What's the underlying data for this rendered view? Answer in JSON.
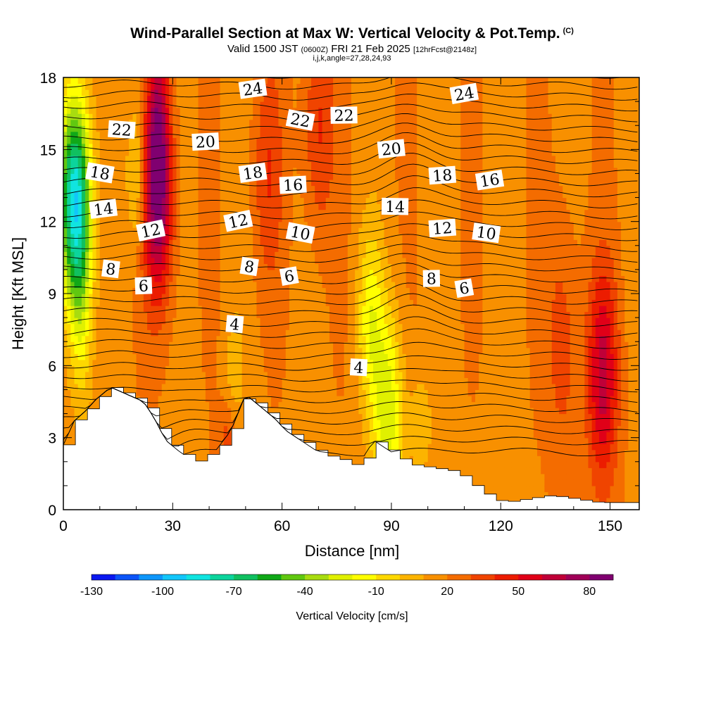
{
  "header": {
    "title": "Wind-Parallel Section at Max W: Vertical Velocity & Pot.Temp.",
    "title_tag": "(C)",
    "valid_prefix": "Valid 1500 JST",
    "valid_zulu": "(0600Z)",
    "valid_date": "FRI 21 Feb 2025",
    "forecast_info": "[12hrFcst@2148z]",
    "grid_info": "i,j,k,angle=27,28,24,93"
  },
  "chart_data": {
    "type": "heatmap",
    "title": "Wind-Parallel Section at Max W: Vertical Velocity & Pot.Temp.",
    "xlabel": "Distance [nm]",
    "ylabel": "Height [Kft MSL]",
    "xlim": [
      0,
      158
    ],
    "ylim": [
      0,
      18
    ],
    "x_ticks": [
      "0",
      "30",
      "60",
      "90",
      "120",
      "150"
    ],
    "y_ticks": [
      "0",
      "3",
      "6",
      "9",
      "12",
      "15",
      "18"
    ],
    "colorbar": {
      "label": "Vertical Velocity [cm/s]",
      "tick_labels": [
        "-130",
        "-100",
        "-70",
        "-40",
        "-10",
        "20",
        "50",
        "80"
      ],
      "colors": [
        "#0a18f0",
        "#0c54f8",
        "#0e96fa",
        "#12c6fa",
        "#10e4e0",
        "#0cd49c",
        "#10c060",
        "#10a818",
        "#60c810",
        "#a8dc10",
        "#e0f000",
        "#ffff00",
        "#fed800",
        "#fcb400",
        "#f89000",
        "#f46c00",
        "#f04400",
        "#ec1c00",
        "#e00018",
        "#c00038",
        "#a00058",
        "#800070"
      ]
    },
    "velocity_features": [
      {
        "x": 3,
        "z": 13,
        "w": -100
      },
      {
        "x": 26,
        "z": 13,
        "w": 55
      },
      {
        "x": 89,
        "z": 4,
        "w": -45
      },
      {
        "x": 148,
        "z": 5.5,
        "w": 45
      },
      {
        "x": 70,
        "z": 16,
        "w": 25
      },
      {
        "x": 56,
        "z": 14,
        "w": 20
      }
    ],
    "terrain": [
      [
        0,
        2.7
      ],
      [
        3,
        3.7
      ],
      [
        6,
        4.1
      ],
      [
        9,
        4.6
      ],
      [
        13,
        5.1
      ],
      [
        22,
        4.5
      ],
      [
        25,
        3.8
      ],
      [
        28,
        2.9
      ],
      [
        32,
        2.4
      ],
      [
        36,
        2.0
      ],
      [
        42,
        2.5
      ],
      [
        46,
        3.3
      ],
      [
        50,
        4.8
      ],
      [
        58,
        3.8
      ],
      [
        61,
        3.3
      ],
      [
        67,
        2.7
      ],
      [
        71,
        2.3
      ],
      [
        78,
        2.0
      ],
      [
        81,
        1.7
      ],
      [
        85,
        2.9
      ],
      [
        91,
        2.3
      ],
      [
        94,
        1.9
      ],
      [
        107,
        1.6
      ],
      [
        110,
        1.3
      ],
      [
        113,
        0.9
      ],
      [
        117,
        0.5
      ],
      [
        120,
        0.3
      ],
      [
        133,
        0.6
      ],
      [
        146,
        0.3
      ],
      [
        151,
        0.3
      ],
      [
        158,
        0.3
      ]
    ],
    "theta_labels": [
      {
        "text": "24",
        "x": 52,
        "z": 17.5
      },
      {
        "text": "24",
        "x": 110,
        "z": 17.3
      },
      {
        "text": "22",
        "x": 16,
        "z": 15.8
      },
      {
        "text": "22",
        "x": 65,
        "z": 16.2
      },
      {
        "text": "22",
        "x": 77,
        "z": 16.4
      },
      {
        "text": "20",
        "x": 39,
        "z": 15.3
      },
      {
        "text": "20",
        "x": 90,
        "z": 15.0
      },
      {
        "text": "18",
        "x": 10,
        "z": 14.0
      },
      {
        "text": "18",
        "x": 52,
        "z": 14.0
      },
      {
        "text": "18",
        "x": 104,
        "z": 13.9
      },
      {
        "text": "16",
        "x": 63,
        "z": 13.5
      },
      {
        "text": "16",
        "x": 117,
        "z": 13.7
      },
      {
        "text": "14",
        "x": 11,
        "z": 12.5
      },
      {
        "text": "14",
        "x": 91,
        "z": 12.6
      },
      {
        "text": "12",
        "x": 24,
        "z": 11.6
      },
      {
        "text": "12",
        "x": 48,
        "z": 12.0
      },
      {
        "text": "12",
        "x": 104,
        "z": 11.7
      },
      {
        "text": "10",
        "x": 65,
        "z": 11.5
      },
      {
        "text": "10",
        "x": 116,
        "z": 11.5
      },
      {
        "text": "8",
        "x": 13,
        "z": 10.0
      },
      {
        "text": "8",
        "x": 51,
        "z": 10.1
      },
      {
        "text": "8",
        "x": 101,
        "z": 9.6
      },
      {
        "text": "6",
        "x": 22,
        "z": 9.3
      },
      {
        "text": "6",
        "x": 62,
        "z": 9.7
      },
      {
        "text": "6",
        "x": 110,
        "z": 9.2
      },
      {
        "text": "4",
        "x": 47,
        "z": 7.7
      },
      {
        "text": "4",
        "x": 81,
        "z": 5.9
      }
    ]
  }
}
